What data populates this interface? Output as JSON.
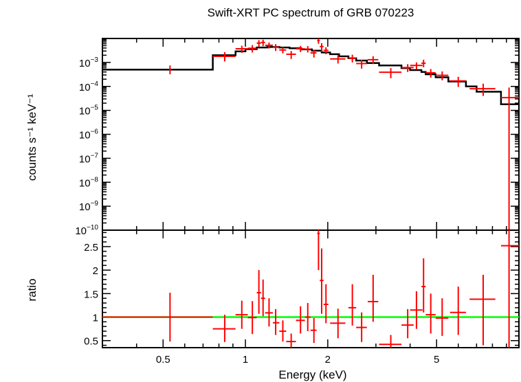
{
  "chart_data": [
    {
      "type": "scatter",
      "panel": "spectrum",
      "title": "Swift-XRT PC spectrum of GRB 070223",
      "ylabel": "counts s⁻¹ keV⁻¹",
      "yscale": "log",
      "xscale": "log",
      "xlim": [
        0.3,
        10
      ],
      "ylim": [
        1e-10,
        0.01
      ],
      "ytick_labels": [
        {
          "value": 0.001,
          "base": "10",
          "exp": "−3"
        },
        {
          "value": 0.0001,
          "base": "10",
          "exp": "−4"
        },
        {
          "value": 1e-05,
          "base": "10",
          "exp": "−5"
        },
        {
          "value": 1e-06,
          "base": "10",
          "exp": "−6"
        },
        {
          "value": 1e-07,
          "base": "10",
          "exp": "−7"
        },
        {
          "value": 1e-08,
          "base": "10",
          "exp": "−8"
        },
        {
          "value": 1e-09,
          "base": "10",
          "exp": "−9"
        },
        {
          "value": 1e-10,
          "base": "10",
          "exp": "−10"
        }
      ],
      "series": [
        {
          "kind": "data",
          "color": "#ff0000",
          "points": [
            {
              "x": 0.53,
              "xlo": 0.53,
              "xhi": 0.53,
              "y": 0.0005,
              "ylo": 0.00032,
              "yhi": 0.00075
            },
            {
              "x": 0.84,
              "xlo": 0.76,
              "xhi": 0.92,
              "y": 0.0018,
              "ylo": 0.0011,
              "yhi": 0.0027
            },
            {
              "x": 0.97,
              "xlo": 0.92,
              "xhi": 1.02,
              "y": 0.0037,
              "ylo": 0.0025,
              "yhi": 0.005
            },
            {
              "x": 1.06,
              "xlo": 1.02,
              "xhi": 1.1,
              "y": 0.0039,
              "ylo": 0.0026,
              "yhi": 0.0053
            },
            {
              "x": 1.12,
              "xlo": 1.1,
              "xhi": 1.14,
              "y": 0.0064,
              "ylo": 0.0046,
              "yhi": 0.0085
            },
            {
              "x": 1.16,
              "xlo": 1.14,
              "xhi": 1.18,
              "y": 0.0068,
              "ylo": 0.0048,
              "yhi": 0.0089
            },
            {
              "x": 1.22,
              "xlo": 1.18,
              "xhi": 1.26,
              "y": 0.0052,
              "ylo": 0.0038,
              "yhi": 0.0068
            },
            {
              "x": 1.29,
              "xlo": 1.26,
              "xhi": 1.33,
              "y": 0.0043,
              "ylo": 0.003,
              "yhi": 0.0058
            },
            {
              "x": 1.37,
              "xlo": 1.33,
              "xhi": 1.41,
              "y": 0.0033,
              "ylo": 0.0024,
              "yhi": 0.0044
            },
            {
              "x": 1.47,
              "xlo": 1.41,
              "xhi": 1.53,
              "y": 0.0022,
              "ylo": 0.0014,
              "yhi": 0.003
            },
            {
              "x": 1.59,
              "xlo": 1.53,
              "xhi": 1.65,
              "y": 0.0037,
              "ylo": 0.0027,
              "yhi": 0.0049
            },
            {
              "x": 1.69,
              "xlo": 1.65,
              "xhi": 1.73,
              "y": 0.0036,
              "ylo": 0.0026,
              "yhi": 0.0048
            },
            {
              "x": 1.78,
              "xlo": 1.73,
              "xhi": 1.82,
              "y": 0.0025,
              "ylo": 0.0016,
              "yhi": 0.0034
            },
            {
              "x": 1.85,
              "xlo": 1.83,
              "xhi": 1.87,
              "y": 0.0082,
              "ylo": 0.006,
              "yhi": 0.01
            },
            {
              "x": 1.9,
              "xlo": 1.87,
              "xhi": 1.93,
              "y": 0.0046,
              "ylo": 0.0028,
              "yhi": 0.0064
            },
            {
              "x": 1.97,
              "xlo": 1.93,
              "xhi": 2.01,
              "y": 0.0032,
              "ylo": 0.0022,
              "yhi": 0.0043
            },
            {
              "x": 2.18,
              "xlo": 2.04,
              "xhi": 2.32,
              "y": 0.0014,
              "ylo": 0.0009,
              "yhi": 0.002
            },
            {
              "x": 2.46,
              "xlo": 2.38,
              "xhi": 2.54,
              "y": 0.0015,
              "ylo": 0.001,
              "yhi": 0.0021
            },
            {
              "x": 2.66,
              "xlo": 2.54,
              "xhi": 2.78,
              "y": 0.0009,
              "ylo": 0.00055,
              "yhi": 0.0013
            },
            {
              "x": 2.93,
              "xlo": 2.8,
              "xhi": 3.06,
              "y": 0.0013,
              "ylo": 0.00085,
              "yhi": 0.0018
            },
            {
              "x": 3.4,
              "xlo": 3.08,
              "xhi": 3.72,
              "y": 0.00039,
              "ylo": 0.00022,
              "yhi": 0.00058
            },
            {
              "x": 3.92,
              "xlo": 3.72,
              "xhi": 4.12,
              "y": 0.00061,
              "ylo": 0.0004,
              "yhi": 0.00085
            },
            {
              "x": 4.22,
              "xlo": 4.0,
              "xhi": 4.44,
              "y": 0.00075,
              "ylo": 0.0005,
              "yhi": 0.001
            },
            {
              "x": 4.48,
              "xlo": 4.4,
              "xhi": 4.56,
              "y": 0.00093,
              "ylo": 0.00063,
              "yhi": 0.0013
            },
            {
              "x": 4.76,
              "xlo": 4.56,
              "xhi": 4.96,
              "y": 0.00037,
              "ylo": 0.00023,
              "yhi": 0.00053
            },
            {
              "x": 5.24,
              "xlo": 4.96,
              "xhi": 5.52,
              "y": 0.00029,
              "ylo": 0.00018,
              "yhi": 0.00042
            },
            {
              "x": 6.0,
              "xlo": 5.6,
              "xhi": 6.4,
              "y": 0.00017,
              "ylo": 9.5e-05,
              "yhi": 0.00025
            },
            {
              "x": 7.4,
              "xlo": 6.6,
              "xhi": 8.2,
              "y": 8e-05,
              "ylo": 4e-05,
              "yhi": 0.00013
            },
            {
              "x": 9.2,
              "xlo": 8.6,
              "xhi": 10.0,
              "y": 3.4e-05,
              "ylo": 1e-10,
              "yhi": 9e-05
            }
          ]
        },
        {
          "kind": "model",
          "color": "#000000",
          "step_x": [
            0.3,
            0.76,
            0.76,
            0.92,
            0.92,
            1.0,
            1.0,
            1.1,
            1.1,
            1.2,
            1.2,
            1.33,
            1.33,
            1.45,
            1.45,
            1.6,
            1.6,
            1.75,
            1.75,
            1.9,
            1.9,
            2.04,
            2.04,
            2.2,
            2.2,
            2.38,
            2.38,
            2.54,
            2.54,
            2.78,
            2.78,
            3.08,
            3.08,
            3.72,
            3.72,
            4.0,
            4.0,
            4.4,
            4.4,
            4.56,
            4.56,
            4.96,
            4.96,
            5.52,
            5.52,
            6.4,
            6.4,
            7.0,
            7.0,
            8.6,
            8.6,
            10.0
          ],
          "step_y": [
            0.0005,
            0.0005,
            0.002,
            0.002,
            0.0029,
            0.0029,
            0.0036,
            0.0036,
            0.0042,
            0.0042,
            0.0044,
            0.0044,
            0.0042,
            0.0042,
            0.0039,
            0.0039,
            0.0035,
            0.0035,
            0.0031,
            0.0031,
            0.0026,
            0.0026,
            0.0022,
            0.0022,
            0.0018,
            0.0018,
            0.0015,
            0.0015,
            0.0012,
            0.0012,
            0.00095,
            0.00095,
            0.00075,
            0.00075,
            0.00058,
            0.00058,
            0.00048,
            0.00048,
            0.0004,
            0.0004,
            0.00032,
            0.00032,
            0.00024,
            0.00024,
            0.00016,
            0.00016,
            0.0001,
            0.0001,
            6e-05,
            6e-05,
            1.8e-05,
            1.8e-05
          ]
        }
      ]
    },
    {
      "type": "scatter",
      "panel": "ratio",
      "xlabel": "Energy (keV)",
      "ylabel": "ratio",
      "xscale": "log",
      "xlim": [
        0.3,
        10
      ],
      "ylim": [
        0.35,
        2.85
      ],
      "xticks": [
        {
          "value": 0.5,
          "label": "0.5"
        },
        {
          "value": 1,
          "label": "1"
        },
        {
          "value": 2,
          "label": "2"
        },
        {
          "value": 5,
          "label": "5"
        }
      ],
      "yticks": [
        {
          "value": 0.5,
          "label": "0.5"
        },
        {
          "value": 1,
          "label": "1"
        },
        {
          "value": 1.5,
          "label": "1.5"
        },
        {
          "value": 2,
          "label": "2"
        },
        {
          "value": 2.5,
          "label": "2.5"
        }
      ],
      "reference_line": {
        "y": 1,
        "color": "#00ff00"
      },
      "series": [
        {
          "kind": "data",
          "color": "#ff0000",
          "points": [
            {
              "x": 0.53,
              "xlo": 0.3,
              "xhi": 0.76,
              "y": 1.0,
              "ylo": 0.48,
              "yhi": 1.52
            },
            {
              "x": 0.84,
              "xlo": 0.76,
              "xhi": 0.92,
              "y": 0.75,
              "ylo": 0.47,
              "yhi": 1.05
            },
            {
              "x": 0.97,
              "xlo": 0.92,
              "xhi": 1.02,
              "y": 1.05,
              "ylo": 0.75,
              "yhi": 1.35
            },
            {
              "x": 1.06,
              "xlo": 1.02,
              "xhi": 1.1,
              "y": 0.99,
              "ylo": 0.64,
              "yhi": 1.34
            },
            {
              "x": 1.12,
              "xlo": 1.1,
              "xhi": 1.14,
              "y": 1.52,
              "ylo": 1.07,
              "yhi": 2.0
            },
            {
              "x": 1.16,
              "xlo": 1.14,
              "xhi": 1.18,
              "y": 1.4,
              "ylo": 1.02,
              "yhi": 1.8
            },
            {
              "x": 1.22,
              "xlo": 1.18,
              "xhi": 1.26,
              "y": 1.09,
              "ylo": 0.8,
              "yhi": 1.4
            },
            {
              "x": 1.29,
              "xlo": 1.26,
              "xhi": 1.33,
              "y": 0.88,
              "ylo": 0.62,
              "yhi": 1.17
            },
            {
              "x": 1.37,
              "xlo": 1.33,
              "xhi": 1.41,
              "y": 0.7,
              "ylo": 0.48,
              "yhi": 0.93
            },
            {
              "x": 1.47,
              "xlo": 1.41,
              "xhi": 1.53,
              "y": 0.48,
              "ylo": 0.33,
              "yhi": 0.65
            },
            {
              "x": 1.59,
              "xlo": 1.53,
              "xhi": 1.65,
              "y": 0.93,
              "ylo": 0.65,
              "yhi": 1.23
            },
            {
              "x": 1.69,
              "xlo": 1.65,
              "xhi": 1.73,
              "y": 1.0,
              "ylo": 0.7,
              "yhi": 1.3
            },
            {
              "x": 1.78,
              "xlo": 1.73,
              "xhi": 1.82,
              "y": 0.72,
              "ylo": 0.45,
              "yhi": 0.98
            },
            {
              "x": 1.85,
              "xlo": 1.83,
              "xhi": 1.87,
              "y": 2.78,
              "ylo": 2.0,
              "yhi": 2.85
            },
            {
              "x": 1.9,
              "xlo": 1.87,
              "xhi": 1.93,
              "y": 1.78,
              "ylo": 1.07,
              "yhi": 2.46
            },
            {
              "x": 1.97,
              "xlo": 1.93,
              "xhi": 2.01,
              "y": 1.27,
              "ylo": 0.87,
              "yhi": 1.7
            },
            {
              "x": 2.18,
              "xlo": 2.04,
              "xhi": 2.32,
              "y": 0.87,
              "ylo": 0.55,
              "yhi": 1.18
            },
            {
              "x": 2.46,
              "xlo": 2.38,
              "xhi": 2.54,
              "y": 1.2,
              "ylo": 0.82,
              "yhi": 1.7
            },
            {
              "x": 2.66,
              "xlo": 2.54,
              "xhi": 2.78,
              "y": 0.78,
              "ylo": 0.47,
              "yhi": 1.1
            },
            {
              "x": 2.93,
              "xlo": 2.8,
              "xhi": 3.06,
              "y": 1.33,
              "ylo": 0.9,
              "yhi": 1.9
            },
            {
              "x": 3.4,
              "xlo": 3.08,
              "xhi": 3.72,
              "y": 0.42,
              "ylo": 0.35,
              "yhi": 0.62
            },
            {
              "x": 3.92,
              "xlo": 3.72,
              "xhi": 4.12,
              "y": 0.83,
              "ylo": 0.55,
              "yhi": 1.17
            },
            {
              "x": 4.22,
              "xlo": 4.0,
              "xhi": 4.44,
              "y": 1.15,
              "ylo": 0.75,
              "yhi": 1.55
            },
            {
              "x": 4.48,
              "xlo": 4.4,
              "xhi": 4.56,
              "y": 1.65,
              "ylo": 1.1,
              "yhi": 2.25
            },
            {
              "x": 4.76,
              "xlo": 4.56,
              "xhi": 4.96,
              "y": 1.05,
              "ylo": 0.65,
              "yhi": 1.5
            },
            {
              "x": 5.24,
              "xlo": 4.96,
              "xhi": 5.52,
              "y": 0.98,
              "ylo": 0.6,
              "yhi": 1.4
            },
            {
              "x": 6.0,
              "xlo": 5.6,
              "xhi": 6.4,
              "y": 1.1,
              "ylo": 0.62,
              "yhi": 1.65
            },
            {
              "x": 7.4,
              "xlo": 6.6,
              "xhi": 8.2,
              "y": 1.38,
              "ylo": 0.4,
              "yhi": 1.9
            },
            {
              "x": 9.2,
              "xlo": 8.6,
              "xhi": 10.0,
              "y": 2.52,
              "ylo": 0.35,
              "yhi": 2.85
            }
          ]
        }
      ]
    }
  ]
}
